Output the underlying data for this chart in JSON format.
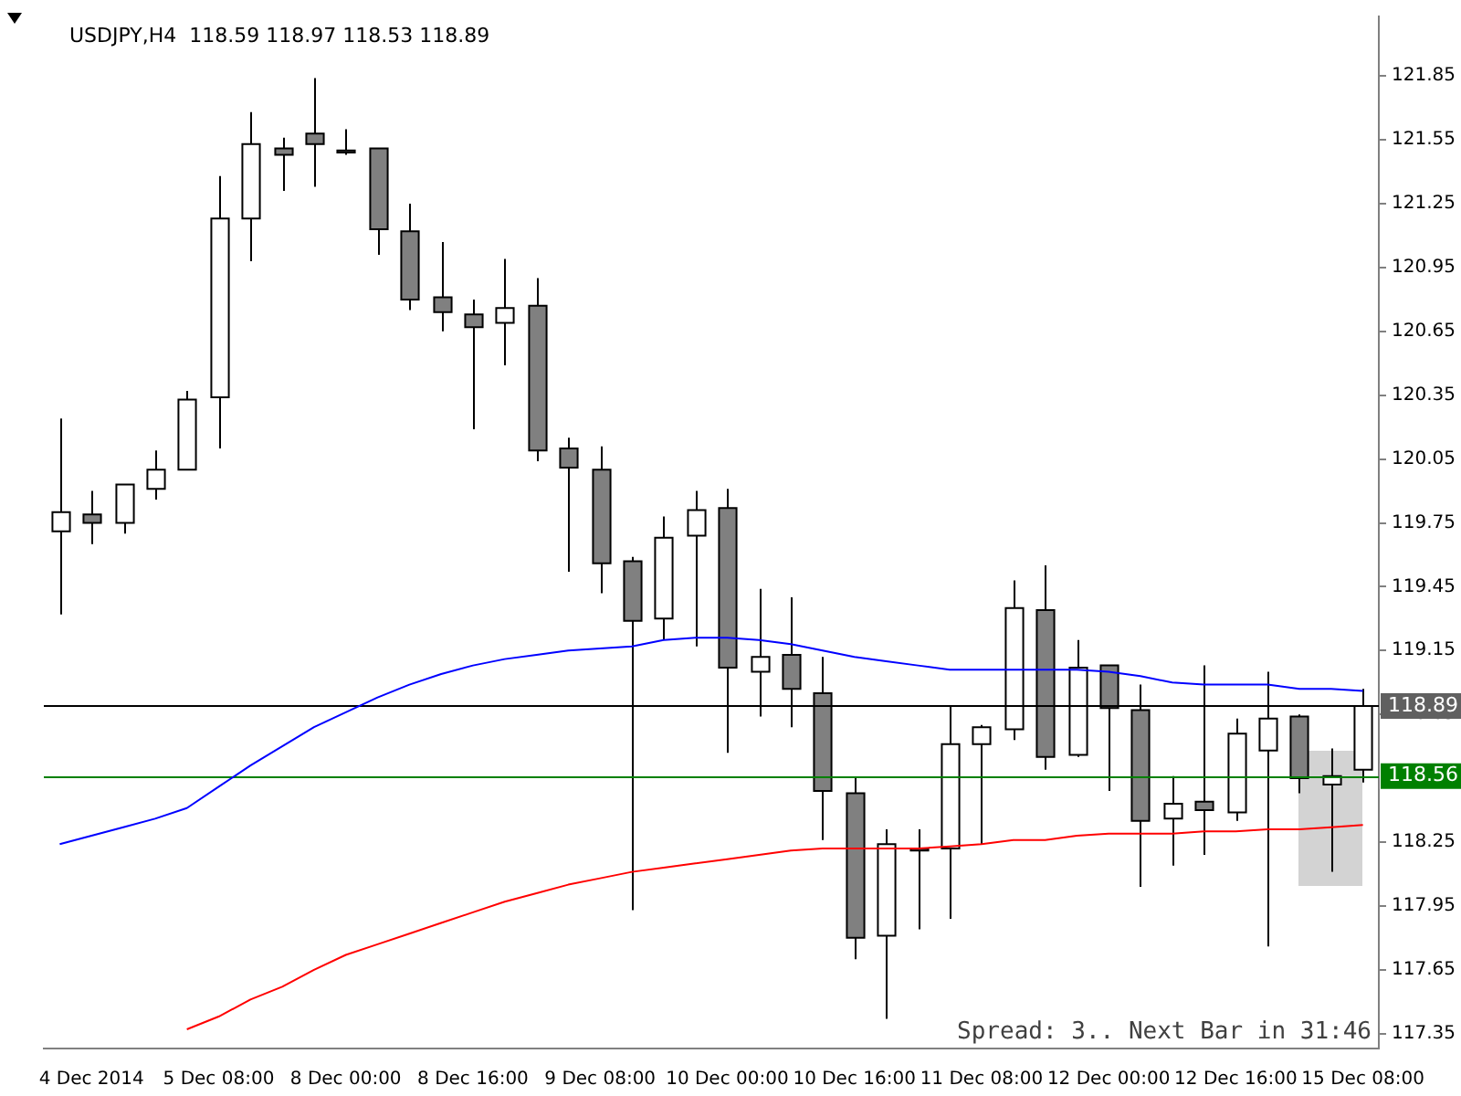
{
  "chart_data": {
    "type": "candlestick",
    "title": "USDJPY,H4  118.59 118.97 118.53 118.89",
    "categories": [
      null,
      "4 Dec 2014",
      null,
      null,
      null,
      "5 Dec 08:00",
      null,
      null,
      null,
      "8 Dec 00:00",
      null,
      null,
      null,
      "8 Dec 16:00",
      null,
      null,
      null,
      "9 Dec 08:00",
      null,
      null,
      null,
      "10 Dec 00:00",
      null,
      null,
      null,
      "10 Dec 16:00",
      null,
      null,
      null,
      "11 Dec 08:00",
      null,
      null,
      null,
      "12 Dec 00:00",
      null,
      null,
      null,
      "12 Dec 16:00",
      null,
      null,
      null,
      "15 Dec 08:00"
    ],
    "ohlc": [
      [
        119.71,
        120.24,
        119.32,
        119.8
      ],
      [
        119.79,
        119.9,
        119.65,
        119.75
      ],
      [
        119.75,
        119.93,
        119.7,
        119.93
      ],
      [
        119.91,
        120.09,
        119.86,
        120.0
      ],
      [
        120.0,
        120.37,
        120.0,
        120.33
      ],
      [
        120.34,
        121.38,
        120.1,
        121.18
      ],
      [
        121.18,
        121.68,
        120.98,
        121.53
      ],
      [
        121.51,
        121.56,
        121.31,
        121.48
      ],
      [
        121.58,
        121.84,
        121.33,
        121.53
      ],
      [
        121.5,
        121.6,
        121.48,
        121.49
      ],
      [
        121.51,
        121.51,
        121.01,
        121.13
      ],
      [
        121.12,
        121.25,
        120.75,
        120.8
      ],
      [
        120.81,
        121.07,
        120.65,
        120.74
      ],
      [
        120.73,
        120.8,
        120.19,
        120.67
      ],
      [
        120.69,
        120.99,
        120.49,
        120.76
      ],
      [
        120.77,
        120.9,
        120.04,
        120.09
      ],
      [
        120.1,
        120.15,
        119.52,
        120.01
      ],
      [
        120.0,
        120.11,
        119.42,
        119.56
      ],
      [
        119.57,
        119.59,
        117.93,
        119.29
      ],
      [
        119.3,
        119.78,
        119.2,
        119.68
      ],
      [
        119.69,
        119.9,
        119.17,
        119.81
      ],
      [
        119.82,
        119.91,
        118.67,
        119.07
      ],
      [
        119.05,
        119.44,
        118.84,
        119.12
      ],
      [
        119.13,
        119.4,
        118.79,
        118.97
      ],
      [
        118.95,
        119.12,
        118.26,
        118.49
      ],
      [
        118.48,
        118.55,
        117.7,
        117.8
      ],
      [
        117.81,
        118.31,
        117.42,
        118.24
      ],
      [
        118.22,
        118.31,
        117.84,
        118.21
      ],
      [
        118.22,
        118.89,
        117.89,
        118.71
      ],
      [
        118.71,
        118.8,
        118.24,
        118.79
      ],
      [
        118.78,
        119.48,
        118.73,
        119.35
      ],
      [
        119.34,
        119.55,
        118.59,
        118.65
      ],
      [
        118.66,
        119.2,
        118.65,
        119.07
      ],
      [
        119.08,
        119.08,
        118.49,
        118.88
      ],
      [
        118.87,
        118.99,
        118.04,
        118.35
      ],
      [
        118.36,
        118.56,
        118.14,
        118.43
      ],
      [
        118.44,
        119.08,
        118.19,
        118.4
      ],
      [
        118.39,
        118.83,
        118.35,
        118.76
      ],
      [
        118.68,
        119.05,
        117.76,
        118.83
      ],
      [
        118.84,
        118.85,
        118.48,
        118.55
      ],
      [
        118.52,
        118.69,
        118.11,
        118.56
      ],
      [
        118.59,
        118.97,
        118.53,
        118.89
      ]
    ],
    "series": [
      {
        "type": "line",
        "color": "#0000ff",
        "values": [
          118.24,
          118.28,
          118.32,
          118.36,
          118.41,
          118.51,
          118.61,
          118.7,
          118.79,
          118.86,
          118.93,
          118.99,
          119.04,
          119.08,
          119.11,
          119.13,
          119.15,
          119.16,
          119.17,
          119.2,
          119.21,
          119.21,
          119.2,
          119.18,
          119.15,
          119.12,
          119.1,
          119.08,
          119.06,
          119.06,
          119.06,
          119.06,
          119.06,
          119.05,
          119.03,
          119.0,
          118.99,
          118.99,
          118.99,
          118.97,
          118.97,
          118.96
        ]
      },
      {
        "type": "line",
        "color": "#ff0000",
        "values": [
          null,
          null,
          null,
          null,
          117.37,
          117.43,
          117.51,
          117.57,
          117.65,
          117.72,
          117.77,
          117.82,
          117.87,
          117.92,
          117.97,
          118.01,
          118.05,
          118.08,
          118.11,
          118.13,
          118.15,
          118.17,
          118.19,
          118.21,
          118.22,
          118.22,
          118.22,
          118.22,
          118.23,
          118.24,
          118.26,
          118.26,
          118.28,
          118.29,
          118.29,
          118.29,
          118.3,
          118.3,
          118.31,
          118.31,
          118.32,
          118.33
        ]
      }
    ],
    "ylim": [
      117.28,
      122.13
    ],
    "yticks": [
      117.35,
      117.65,
      117.95,
      118.25,
      118.85,
      119.15,
      119.45,
      119.75,
      120.05,
      120.35,
      120.65,
      120.95,
      121.25,
      121.55,
      121.85
    ],
    "ref_lines": [
      {
        "axis": "y",
        "value": 118.89,
        "label": "118.89",
        "color": "#000000"
      },
      {
        "axis": "y",
        "value": 118.56,
        "label": "118.56",
        "color": "#008000"
      }
    ],
    "annotations": [
      "Spread: 3.. Next Bar in 31:46"
    ],
    "grid": false,
    "legend": false,
    "marker": "none",
    "line_style": "solid"
  }
}
